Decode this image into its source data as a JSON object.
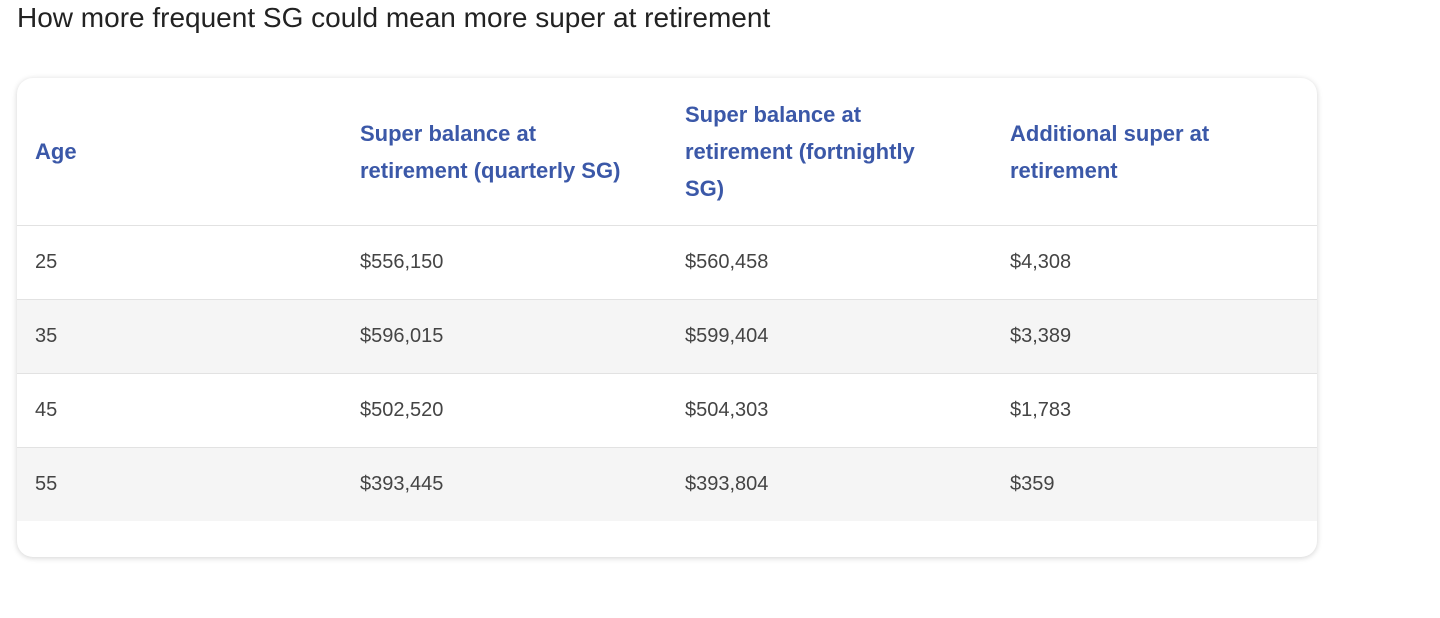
{
  "header": {
    "title": "How more frequent SG could mean more super at retirement"
  },
  "table": {
    "columns": [
      "Age",
      "Super balance at retirement (quarterly SG)",
      "Super balance at retirement (fortnightly SG)",
      "Additional super at retirement"
    ],
    "rows": [
      [
        "25",
        "$556,150",
        "$560,458",
        "$4,308"
      ],
      [
        "35",
        "$596,015",
        "$599,404",
        "$3,389"
      ],
      [
        "45",
        "$502,520",
        "$504,303",
        "$1,783"
      ],
      [
        "55",
        "$393,445",
        "$393,804",
        "$359"
      ]
    ]
  }
}
